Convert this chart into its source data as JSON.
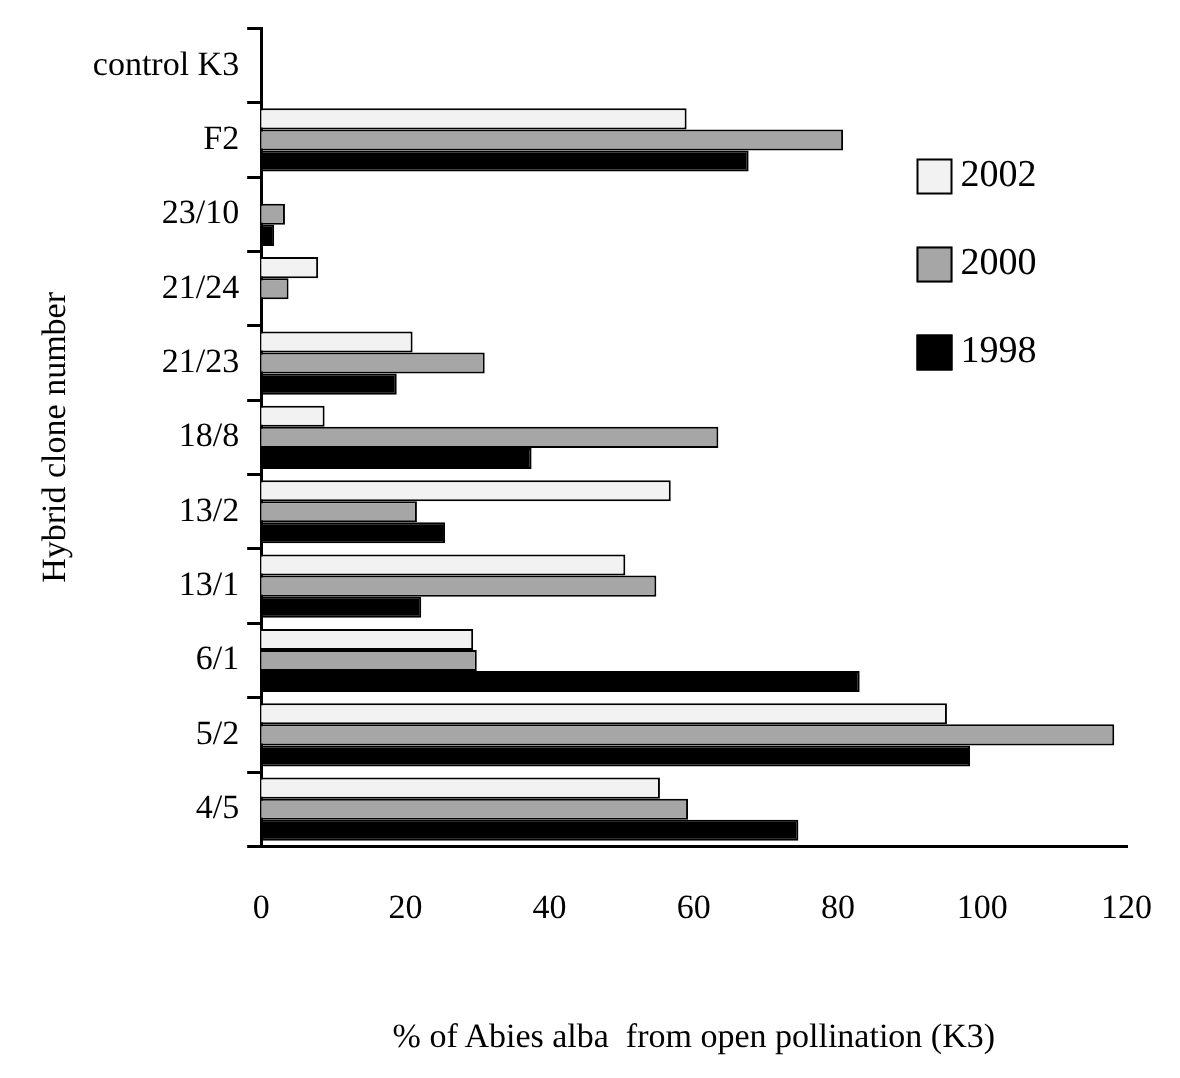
{
  "chart_data": {
    "type": "bar",
    "orientation": "horizontal",
    "xlabel": "% of Abies alba  from open pollination (K3)",
    "ylabel": "Hybrid clone number",
    "categories": [
      "control K3",
      "F2",
      "23/10",
      "21/24",
      "21/23",
      "18/8",
      "13/2",
      "13/1",
      "6/1",
      "5/2",
      "4/5"
    ],
    "series": [
      {
        "name": "2002",
        "color": "#f2f2f2",
        "values": [
          null,
          59,
          null,
          7.9,
          21,
          8.8,
          56.8,
          50.5,
          29.4,
          95.1,
          55.3
        ]
      },
      {
        "name": "2000",
        "color": "#a6a6a6",
        "values": [
          null,
          80.7,
          3.3,
          3.8,
          31,
          63.4,
          21.6,
          54.8,
          29.9,
          118.3,
          59.2
        ]
      },
      {
        "name": "1998",
        "color": "#000000",
        "values": [
          null,
          67.6,
          1.8,
          null,
          18.8,
          37.5,
          25.5,
          22.2,
          83,
          98.3,
          74.5
        ]
      }
    ],
    "xlim": [
      0,
      120
    ],
    "xticks": [
      0,
      20,
      40,
      60,
      80,
      100,
      120
    ],
    "grid": false,
    "legend": "top right"
  }
}
